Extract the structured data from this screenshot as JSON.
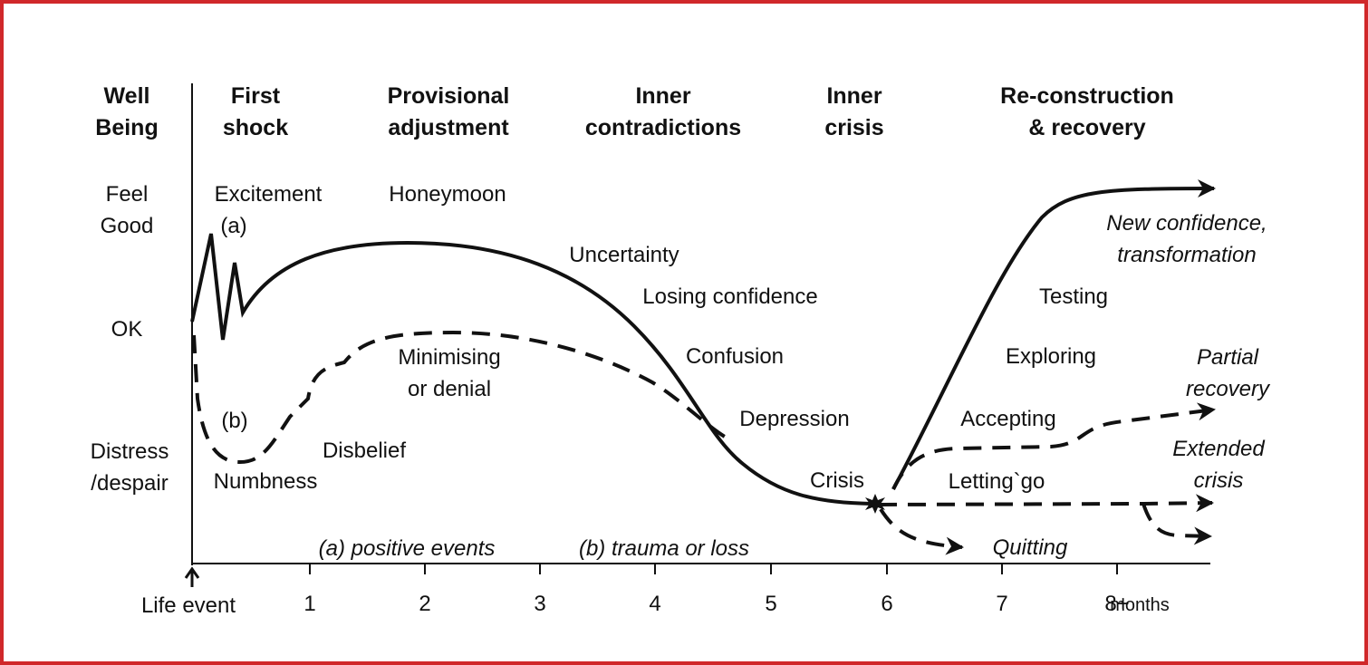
{
  "axis_title": [
    "Well",
    "Being"
  ],
  "phases": [
    [
      "First",
      "shock"
    ],
    [
      "Provisional",
      "adjustment"
    ],
    [
      "Inner",
      "contradictions"
    ],
    [
      "Inner",
      "crisis"
    ],
    [
      "Re-construction",
      "& recovery"
    ]
  ],
  "levels": [
    [
      "Feel",
      "Good"
    ],
    [
      "OK"
    ],
    [
      "Distress",
      "/despair"
    ]
  ],
  "curve_labels": {
    "excitement": "Excitement",
    "a": "(a)",
    "honeymoon": "Honeymoon",
    "uncertainty": "Uncertainty",
    "losing_confidence": "Losing confidence",
    "confusion": "Confusion",
    "depression": "Depression",
    "crisis": "Crisis",
    "minimising": [
      "Minimising",
      "or denial"
    ],
    "b": "(b)",
    "disbelief": "Disbelief",
    "numbness": "Numbness",
    "new_confidence": [
      "New confidence,",
      "transformation"
    ],
    "testing": "Testing",
    "exploring": "Exploring",
    "partial_recovery": [
      "Partial",
      "recovery"
    ],
    "accepting": "Accepting",
    "extended_crisis": [
      "Extended",
      "crisis"
    ],
    "letting_go": "Letting`go",
    "quitting": "Quitting"
  },
  "notes": [
    "(a) positive events",
    "(b) trauma or loss"
  ],
  "x_axis": {
    "origin": "Life event",
    "ticks": [
      "1",
      "2",
      "3",
      "4",
      "5",
      "6",
      "7",
      "8+"
    ],
    "unit": "months"
  }
}
